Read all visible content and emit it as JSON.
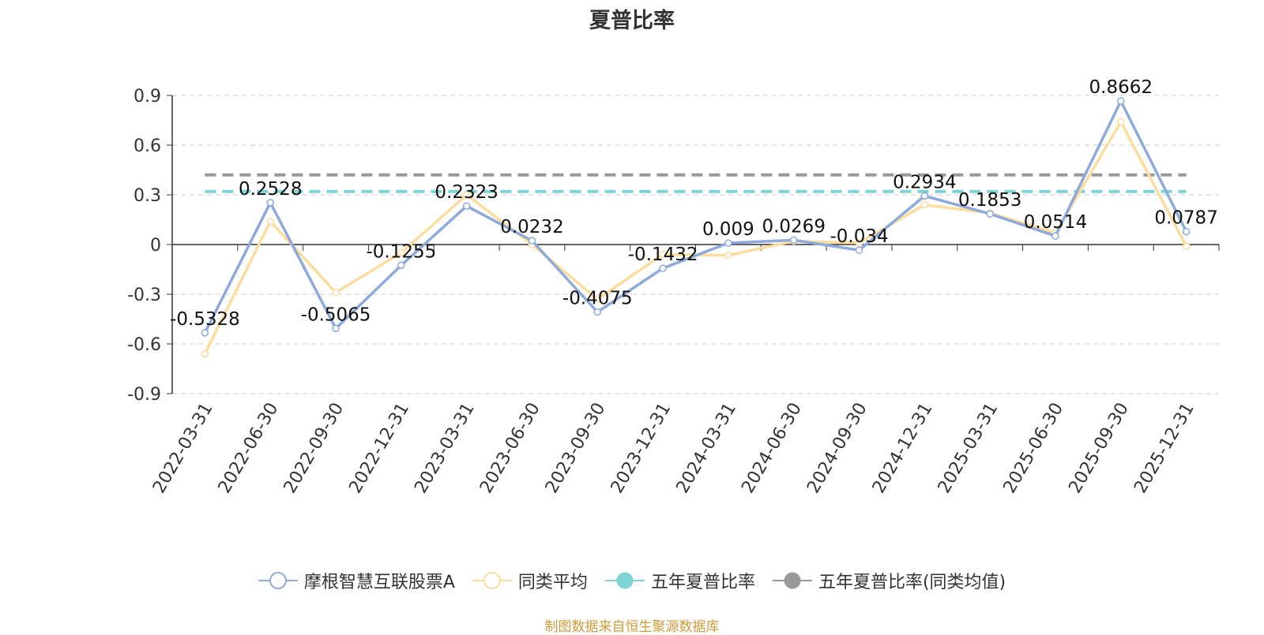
{
  "chart_data": {
    "type": "line",
    "title": "夏普比率",
    "categories": [
      "2022-03-31",
      "2022-06-30",
      "2022-09-30",
      "2022-12-31",
      "2023-03-31",
      "2023-06-30",
      "2023-09-30",
      "2023-12-31",
      "2024-03-31",
      "2024-06-30",
      "2024-09-30",
      "2024-12-31",
      "2025-03-31",
      "2025-06-30",
      "2025-09-30",
      "2025-12-31"
    ],
    "ylim": [
      -0.9,
      0.9
    ],
    "yticks": [
      "0.9",
      "0.6",
      "0.3",
      "0",
      "-0.3",
      "-0.6",
      "-0.9"
    ],
    "ytick_values": [
      0.9,
      0.6,
      0.3,
      0,
      -0.3,
      -0.6,
      -0.9
    ],
    "grid": true,
    "legend_position": "bottom",
    "series": [
      {
        "name": "摩根智慧互联股票A",
        "color": "#8eaadb",
        "values": [
          -0.5328,
          0.2528,
          -0.5065,
          -0.1255,
          0.2323,
          0.0232,
          -0.4075,
          -0.1432,
          0.009,
          0.0269,
          -0.034,
          0.2934,
          0.1853,
          0.0514,
          0.8662,
          0.0787
        ],
        "labels": [
          "-0.5328",
          "0.2528",
          "-0.5065",
          "-0.1255",
          "0.2323",
          "0.0232",
          "-0.4075",
          "-0.1432",
          "0.009",
          "0.0269",
          "-0.034",
          "0.2934",
          "0.1853",
          "0.0514",
          "0.8662",
          "0.0787"
        ]
      },
      {
        "name": "同类平均",
        "color": "#fddd9e",
        "values": [
          -0.66,
          0.14,
          -0.29,
          -0.05,
          0.3,
          0.0,
          -0.33,
          -0.06,
          -0.065,
          0.02,
          0.01,
          0.24,
          0.19,
          0.07,
          0.74,
          -0.01
        ]
      },
      {
        "name": "五年夏普比率",
        "color": "#7ed3d6",
        "constant": 0.32
      },
      {
        "name": "五年夏普比率(同类均值)",
        "color": "#999999",
        "constant": 0.42
      }
    ],
    "source_note": "制图数据来自恒生聚源数据库"
  }
}
